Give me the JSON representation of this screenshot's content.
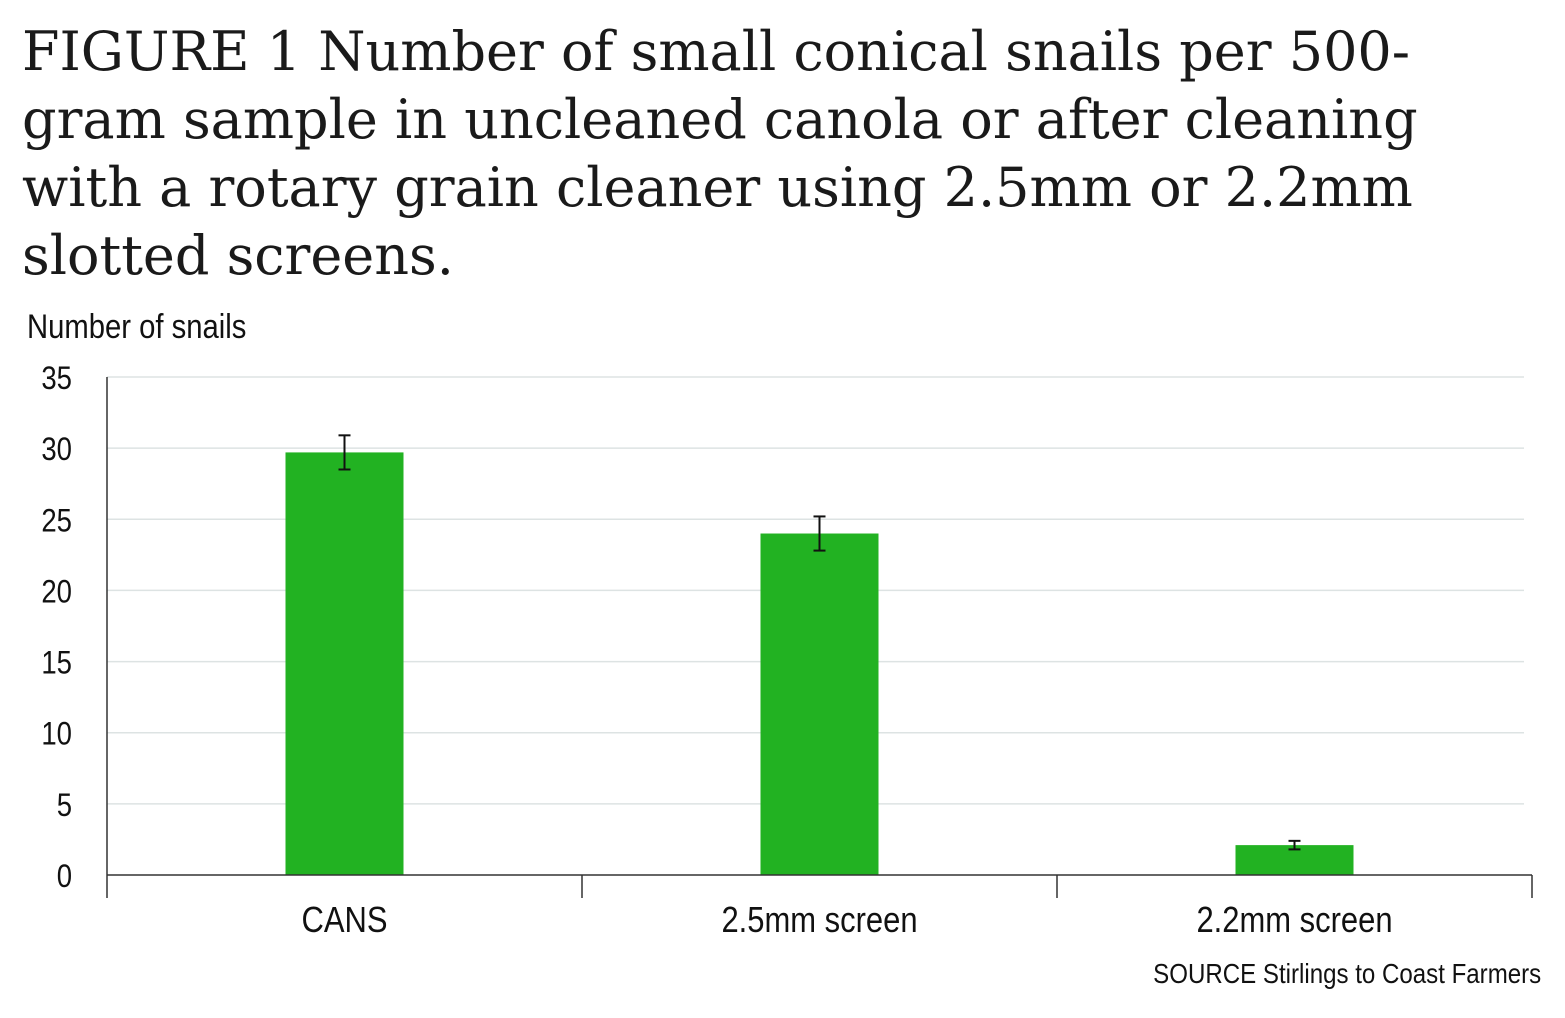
{
  "figure": {
    "title": "FIGURE 1  Number of small conical snails per 500-gram sample in uncleaned canola or after cleaning with a rotary grain cleaner using 2.5mm or 2.2mm slotted screens.",
    "source": "SOURCE Stirlings to Coast Farmers"
  },
  "chart_data": {
    "type": "bar",
    "title": "FIGURE 1  Number of small conical snails per 500-gram sample in uncleaned canola or after cleaning with a rotary grain cleaner using 2.5mm or 2.2mm slotted screens.",
    "xlabel": "",
    "ylabel": "Number of snails",
    "categories": [
      "CANS",
      "2.5mm screen",
      "2.2mm screen"
    ],
    "values": [
      29.7,
      24.0,
      2.1
    ],
    "error_bars": [
      {
        "low": 28.5,
        "high": 30.9
      },
      {
        "low": 22.8,
        "high": 25.2
      },
      {
        "low": 1.8,
        "high": 2.4
      }
    ],
    "ylim": [
      0,
      35
    ],
    "yticks": [
      0,
      5,
      10,
      15,
      20,
      25,
      30,
      35
    ],
    "grid": true,
    "legend": "none",
    "colors": {
      "bar": "#22b222",
      "grid": "#dde3e3",
      "axis": "#333333",
      "error_bar": "#111111"
    }
  }
}
